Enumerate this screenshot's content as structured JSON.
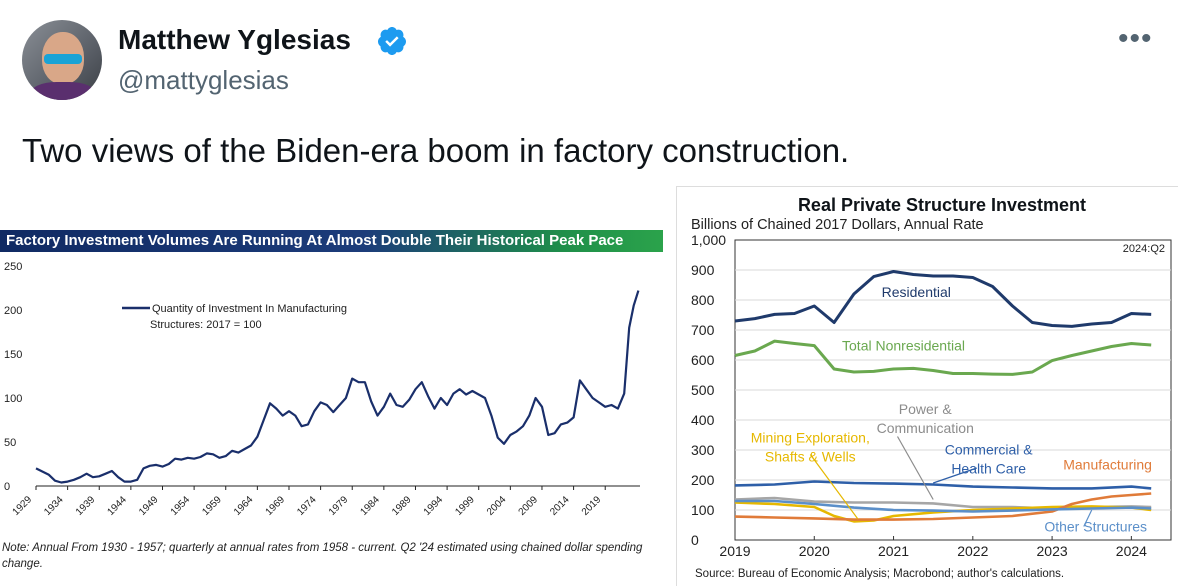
{
  "tweet": {
    "name": "Matthew Yglesias",
    "handle": "@mattyglesias",
    "more_label": "•••",
    "text": "Two views of the Biden-era boom in factory construction."
  },
  "chart_data": [
    {
      "type": "line",
      "title": "Factory Investment Volumes Are Running At Almost Double Their Historical Peak Pace",
      "xlabel": "",
      "ylabel": "",
      "x_tick_labels": [
        "1929",
        "1934",
        "1939",
        "1944",
        "1949",
        "1954",
        "1959",
        "1964",
        "1969",
        "1974",
        "1979",
        "1984",
        "1989",
        "1994",
        "1999",
        "2004",
        "2009",
        "2014",
        "2019"
      ],
      "y_tick_labels": [
        "0",
        "50",
        "100",
        "150",
        "200",
        "250"
      ],
      "ylim": [
        0,
        250
      ],
      "xlim": [
        1929,
        2024.5
      ],
      "legend": "top-left",
      "note": "Note: Annual From 1930 - 1957; quarterly at annual rates from 1958 - current. Q2 '24 estimated using chained dollar spending change.",
      "series": [
        {
          "name": "Quantity of Investment In Manufacturing Structures: 2017 = 100",
          "color": "#1a2f6b",
          "points": [
            [
              1929,
              20
            ],
            [
              1931,
              13
            ],
            [
              1932,
              6
            ],
            [
              1933,
              4
            ],
            [
              1934,
              5
            ],
            [
              1935,
              7
            ],
            [
              1936,
              10
            ],
            [
              1937,
              14
            ],
            [
              1938,
              10
            ],
            [
              1939,
              11
            ],
            [
              1940,
              14
            ],
            [
              1941,
              17
            ],
            [
              1942,
              10
            ],
            [
              1943,
              5
            ],
            [
              1944,
              5
            ],
            [
              1945,
              7
            ],
            [
              1946,
              20
            ],
            [
              1947,
              23
            ],
            [
              1948,
              24
            ],
            [
              1949,
              22
            ],
            [
              1950,
              25
            ],
            [
              1951,
              31
            ],
            [
              1952,
              30
            ],
            [
              1953,
              32
            ],
            [
              1954,
              31
            ],
            [
              1955,
              33
            ],
            [
              1956,
              37
            ],
            [
              1957,
              36
            ],
            [
              1958,
              32
            ],
            [
              1959,
              34
            ],
            [
              1960,
              40
            ],
            [
              1961,
              38
            ],
            [
              1962,
              42
            ],
            [
              1963,
              46
            ],
            [
              1964,
              56
            ],
            [
              1965,
              75
            ],
            [
              1966,
              94
            ],
            [
              1967,
              88
            ],
            [
              1968,
              80
            ],
            [
              1969,
              85
            ],
            [
              1970,
              80
            ],
            [
              1971,
              68
            ],
            [
              1972,
              70
            ],
            [
              1973,
              85
            ],
            [
              1974,
              95
            ],
            [
              1975,
              92
            ],
            [
              1976,
              84
            ],
            [
              1977,
              92
            ],
            [
              1978,
              100
            ],
            [
              1979,
              122
            ],
            [
              1980,
              118
            ],
            [
              1981,
              118
            ],
            [
              1982,
              96
            ],
            [
              1983,
              80
            ],
            [
              1984,
              90
            ],
            [
              1985,
              105
            ],
            [
              1986,
              92
            ],
            [
              1987,
              90
            ],
            [
              1988,
              98
            ],
            [
              1989,
              110
            ],
            [
              1990,
              118
            ],
            [
              1991,
              102
            ],
            [
              1992,
              88
            ],
            [
              1993,
              100
            ],
            [
              1994,
              92
            ],
            [
              1995,
              105
            ],
            [
              1996,
              110
            ],
            [
              1997,
              104
            ],
            [
              1998,
              108
            ],
            [
              1999,
              104
            ],
            [
              2000,
              100
            ],
            [
              2001,
              80
            ],
            [
              2002,
              55
            ],
            [
              2003,
              48
            ],
            [
              2004,
              58
            ],
            [
              2005,
              62
            ],
            [
              2006,
              68
            ],
            [
              2007,
              80
            ],
            [
              2008,
              100
            ],
            [
              2009,
              90
            ],
            [
              2010,
              58
            ],
            [
              2011,
              60
            ],
            [
              2012,
              70
            ],
            [
              2013,
              72
            ],
            [
              2014,
              78
            ],
            [
              2015,
              120
            ],
            [
              2016,
              110
            ],
            [
              2017,
              100
            ],
            [
              2018,
              95
            ],
            [
              2019,
              90
            ],
            [
              2020,
              92
            ],
            [
              2021,
              88
            ],
            [
              2022,
              105
            ],
            [
              2022.8,
              180
            ],
            [
              2023.5,
              205
            ],
            [
              2024.25,
              222
            ]
          ]
        }
      ]
    },
    {
      "type": "line",
      "title": "Real Private Structure Investment",
      "subtitle": "Billions of Chained 2017 Dollars, Annual Rate",
      "annotation": "2024:Q2",
      "source": "Source: Bureau of Economic Analysis; Macrobond; author's calculations.",
      "x_tick_labels": [
        "2019",
        "2020",
        "2021",
        "2022",
        "2023",
        "2024"
      ],
      "y_tick_labels": [
        "0",
        "100",
        "200",
        "300",
        "400",
        "500",
        "600",
        "700",
        "800",
        "900",
        "1,000"
      ],
      "ylim": [
        0,
        1000
      ],
      "xlim": [
        2019,
        2024.5
      ],
      "grid": true,
      "series": [
        {
          "name": "Residential",
          "color": "#1f3a6b",
          "points": [
            [
              2019,
              730
            ],
            [
              2019.25,
              738
            ],
            [
              2019.5,
              752
            ],
            [
              2019.75,
              755
            ],
            [
              2020,
              780
            ],
            [
              2020.25,
              725
            ],
            [
              2020.5,
              820
            ],
            [
              2020.75,
              878
            ],
            [
              2021,
              895
            ],
            [
              2021.25,
              885
            ],
            [
              2021.5,
              880
            ],
            [
              2021.75,
              880
            ],
            [
              2022,
              875
            ],
            [
              2022.25,
              845
            ],
            [
              2022.5,
              780
            ],
            [
              2022.75,
              725
            ],
            [
              2023,
              715
            ],
            [
              2023.25,
              712
            ],
            [
              2023.5,
              720
            ],
            [
              2023.75,
              725
            ],
            [
              2024,
              755
            ],
            [
              2024.25,
              752
            ]
          ]
        },
        {
          "name": "Total Nonresidential",
          "color": "#6aa84f",
          "points": [
            [
              2019,
              615
            ],
            [
              2019.25,
              630
            ],
            [
              2019.5,
              663
            ],
            [
              2019.75,
              655
            ],
            [
              2020,
              648
            ],
            [
              2020.25,
              570
            ],
            [
              2020.5,
              560
            ],
            [
              2020.75,
              562
            ],
            [
              2021,
              570
            ],
            [
              2021.25,
              572
            ],
            [
              2021.5,
              565
            ],
            [
              2021.75,
              555
            ],
            [
              2022,
              555
            ],
            [
              2022.25,
              553
            ],
            [
              2022.5,
              552
            ],
            [
              2022.75,
              560
            ],
            [
              2023,
              598
            ],
            [
              2023.25,
              615
            ],
            [
              2023.5,
              630
            ],
            [
              2023.75,
              645
            ],
            [
              2024,
              655
            ],
            [
              2024.25,
              650
            ]
          ]
        },
        {
          "name": "Commercial & Health Care",
          "color": "#2e5fa8",
          "points": [
            [
              2019,
              182
            ],
            [
              2019.5,
              185
            ],
            [
              2020,
              195
            ],
            [
              2020.5,
              190
            ],
            [
              2021,
              188
            ],
            [
              2021.5,
              185
            ],
            [
              2022,
              178
            ],
            [
              2022.5,
              175
            ],
            [
              2023,
              172
            ],
            [
              2023.5,
              172
            ],
            [
              2024,
              178
            ],
            [
              2024.25,
              172
            ]
          ]
        },
        {
          "name": "Power & Communication",
          "color": "#a6a6a6",
          "points": [
            [
              2019,
              135
            ],
            [
              2019.5,
              140
            ],
            [
              2020,
              128
            ],
            [
              2020.5,
              125
            ],
            [
              2021,
              125
            ],
            [
              2021.5,
              122
            ],
            [
              2022,
              110
            ],
            [
              2022.5,
              110
            ],
            [
              2023,
              105
            ],
            [
              2023.5,
              110
            ],
            [
              2024,
              112
            ],
            [
              2024.25,
              110
            ]
          ]
        },
        {
          "name": "Mining Exploration, Shafts & Wells",
          "color": "#e6b800",
          "points": [
            [
              2019,
              125
            ],
            [
              2019.5,
              120
            ],
            [
              2020,
              110
            ],
            [
              2020.25,
              80
            ],
            [
              2020.5,
              62
            ],
            [
              2020.75,
              65
            ],
            [
              2021,
              80
            ],
            [
              2021.5,
              92
            ],
            [
              2022,
              100
            ],
            [
              2022.5,
              105
            ],
            [
              2023,
              110
            ],
            [
              2023.5,
              112
            ],
            [
              2024,
              108
            ],
            [
              2024.25,
              100
            ]
          ]
        },
        {
          "name": "Manufacturing",
          "color": "#e07b39",
          "points": [
            [
              2019,
              78
            ],
            [
              2019.5,
              75
            ],
            [
              2020,
              72
            ],
            [
              2020.5,
              68
            ],
            [
              2021,
              68
            ],
            [
              2021.5,
              70
            ],
            [
              2022,
              75
            ],
            [
              2022.5,
              80
            ],
            [
              2023,
              95
            ],
            [
              2023.25,
              120
            ],
            [
              2023.5,
              135
            ],
            [
              2023.75,
              145
            ],
            [
              2024,
              150
            ],
            [
              2024.25,
              155
            ]
          ]
        },
        {
          "name": "Other Structures",
          "color": "#5b8fc9",
          "points": [
            [
              2019,
              130
            ],
            [
              2019.5,
              130
            ],
            [
              2020,
              120
            ],
            [
              2020.5,
              108
            ],
            [
              2021,
              100
            ],
            [
              2021.5,
              98
            ],
            [
              2022,
              95
            ],
            [
              2022.5,
              98
            ],
            [
              2023,
              102
            ],
            [
              2023.5,
              105
            ],
            [
              2024,
              108
            ],
            [
              2024.25,
              105
            ]
          ]
        }
      ]
    }
  ]
}
